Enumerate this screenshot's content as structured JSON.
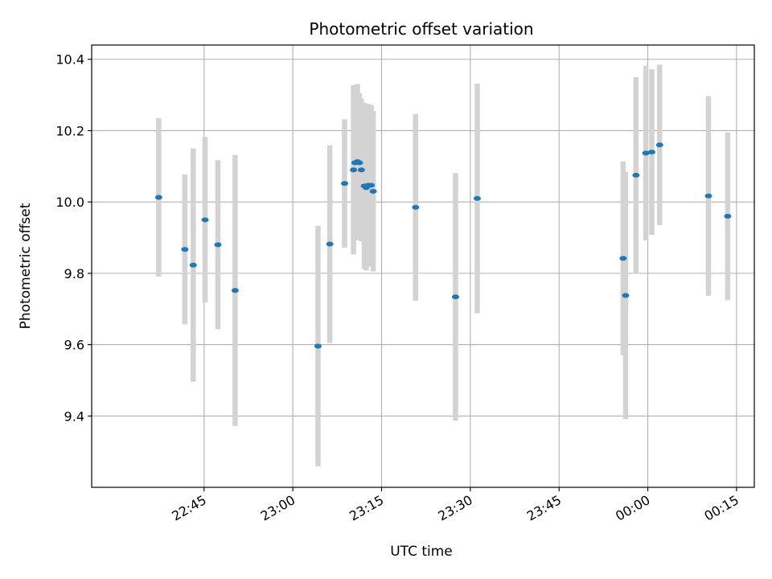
{
  "chart_data": {
    "type": "scatter",
    "title": "Photometric offset variation",
    "xlabel": "UTC time",
    "ylabel": "Photometric offset",
    "x_axis": "time",
    "xlim": [
      "22:26",
      "00:18"
    ],
    "ylim": [
      9.2,
      10.44
    ],
    "grid": true,
    "xticks": [
      "22:45",
      "23:00",
      "23:15",
      "23:30",
      "23:45",
      "00:00",
      "00:15"
    ],
    "yticks": [
      9.4,
      9.6,
      9.8,
      10.0,
      10.2,
      10.4
    ],
    "marker_color": "#1f77b4",
    "errorbar_color": "#d3d3d3",
    "points": [
      {
        "x": "22:37:20",
        "y": 10.013,
        "err": 0.222
      },
      {
        "x": "22:41:45",
        "y": 9.867,
        "err": 0.21
      },
      {
        "x": "22:43:10",
        "y": 9.823,
        "err": 0.327
      },
      {
        "x": "22:45:10",
        "y": 9.95,
        "err": 0.232
      },
      {
        "x": "22:47:20",
        "y": 9.88,
        "err": 0.237
      },
      {
        "x": "22:50:15",
        "y": 9.752,
        "err": 0.38
      },
      {
        "x": "23:04:15",
        "y": 9.596,
        "err": 0.337
      },
      {
        "x": "23:06:15",
        "y": 9.882,
        "err": 0.277
      },
      {
        "x": "23:08:45",
        "y": 10.052,
        "err": 0.18
      },
      {
        "x": "23:10:15",
        "y": 10.09,
        "err": 0.237
      },
      {
        "x": "23:10:30",
        "y": 10.11,
        "err": 0.218
      },
      {
        "x": "23:10:55",
        "y": 10.113,
        "err": 0.218
      },
      {
        "x": "23:11:15",
        "y": 10.11,
        "err": 0.195
      },
      {
        "x": "23:11:35",
        "y": 10.09,
        "err": 0.2
      },
      {
        "x": "23:12:05",
        "y": 10.045,
        "err": 0.233
      },
      {
        "x": "23:12:25",
        "y": 10.04,
        "err": 0.232
      },
      {
        "x": "23:12:45",
        "y": 10.047,
        "err": 0.228
      },
      {
        "x": "23:13:15",
        "y": 10.047,
        "err": 0.225
      },
      {
        "x": "23:13:35",
        "y": 10.03,
        "err": 0.225
      },
      {
        "x": "23:20:45",
        "y": 9.985,
        "err": 0.262
      },
      {
        "x": "23:27:30",
        "y": 9.734,
        "err": 0.347
      },
      {
        "x": "23:31:10",
        "y": 10.01,
        "err": 0.322
      },
      {
        "x": "23:55:50",
        "y": 9.842,
        "err": 0.272
      },
      {
        "x": "23:56:15",
        "y": 9.738,
        "err": 0.347
      },
      {
        "x": "23:58:00",
        "y": 10.075,
        "err": 0.275
      },
      {
        "x": "23:59:40",
        "y": 10.137,
        "err": 0.245
      },
      {
        "x": "00:00:40",
        "y": 10.14,
        "err": 0.232
      },
      {
        "x": "00:02:00",
        "y": 10.16,
        "err": 0.225
      },
      {
        "x": "00:10:15",
        "y": 10.017,
        "err": 0.28
      },
      {
        "x": "00:13:30",
        "y": 9.96,
        "err": 0.235
      }
    ]
  }
}
